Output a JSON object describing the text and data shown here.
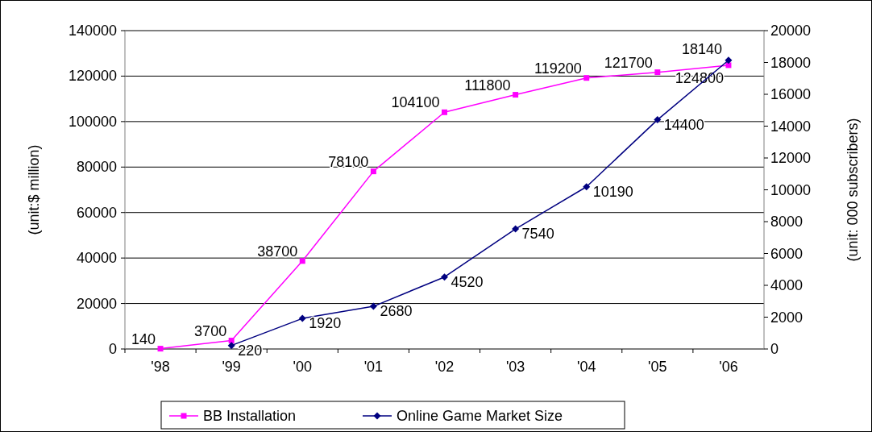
{
  "chart_data": {
    "type": "line",
    "ylabel": "(unit:$ million)",
    "y2label": "(unit: 000 subscribers)",
    "categories": [
      "'98",
      "'99",
      "'00",
      "'01",
      "'02",
      "'03",
      "'04",
      "'05",
      "'06"
    ],
    "series": [
      {
        "name": "BB Installation",
        "color": "#ff00ff",
        "marker": "square",
        "values": [
          140,
          3700,
          38700,
          78100,
          104100,
          111800,
          119200,
          121700,
          124800
        ]
      },
      {
        "name": "Online Game Market Size",
        "color": "#000080",
        "marker": "diamond",
        "axis": "y2",
        "values": [
          null,
          220,
          1920,
          2680,
          4520,
          7540,
          10190,
          14400,
          18140
        ]
      }
    ],
    "ylim": [
      0,
      140000
    ],
    "yticks": [
      0,
      20000,
      40000,
      60000,
      80000,
      100000,
      120000,
      140000
    ],
    "y2lim": [
      0,
      20000
    ],
    "y2ticks": [
      0,
      2000,
      4000,
      6000,
      8000,
      10000,
      12000,
      14000,
      16000,
      18000,
      20000
    ],
    "grid": "y",
    "legend": "bottom",
    "data_labels": true
  }
}
